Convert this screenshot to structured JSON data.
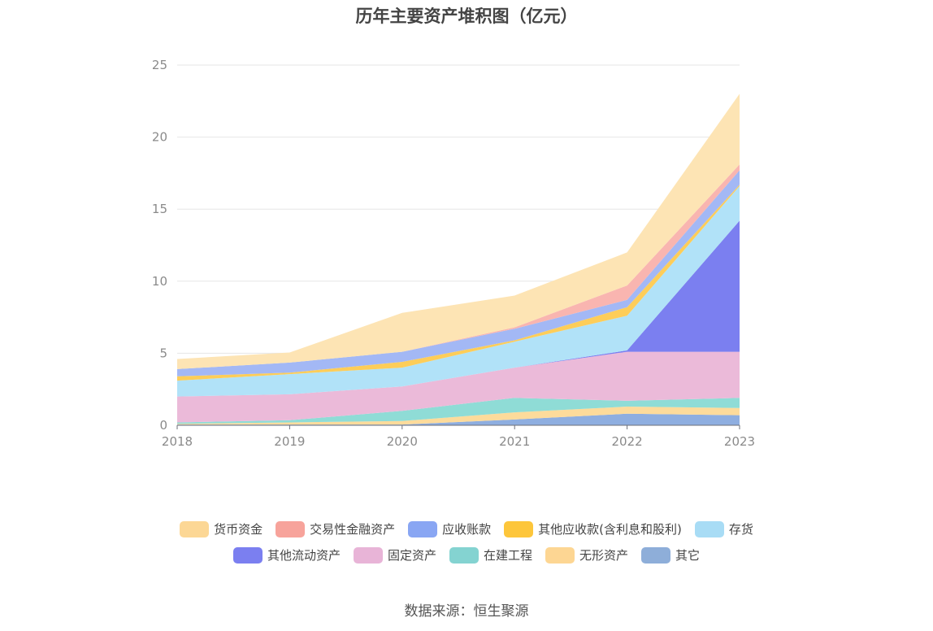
{
  "chart_data": {
    "type": "area",
    "stacked": true,
    "title": "历年主要资产堆积图（亿元）",
    "xlabel": "",
    "ylabel": "",
    "ylim": [
      0,
      25
    ],
    "yticks": [
      0,
      5,
      10,
      15,
      20,
      25
    ],
    "categories": [
      "2018",
      "2019",
      "2020",
      "2021",
      "2022",
      "2023"
    ],
    "grid": true,
    "legend_position": "bottom",
    "series": [
      {
        "name": "其它",
        "color": "#8eaee0",
        "values": [
          0.05,
          0.05,
          0.05,
          0.4,
          0.8,
          0.7
        ]
      },
      {
        "name": "无形资产",
        "color": "#fddb9b",
        "values": [
          0.05,
          0.15,
          0.25,
          0.5,
          0.5,
          0.5
        ]
      },
      {
        "name": "在建工程",
        "color": "#8fdcd6",
        "values": [
          0.1,
          0.15,
          0.7,
          1.0,
          0.4,
          0.7
        ]
      },
      {
        "name": "固定资产",
        "color": "#ebbad9",
        "values": [
          1.8,
          1.8,
          1.7,
          2.1,
          3.4,
          3.2
        ]
      },
      {
        "name": "其他流动资产",
        "color": "#7b7ff0",
        "values": [
          0,
          0,
          0,
          0,
          0.1,
          9.1
        ]
      },
      {
        "name": "存货",
        "color": "#b1e2f8",
        "values": [
          1.1,
          1.4,
          1.3,
          1.8,
          2.4,
          2.4
        ]
      },
      {
        "name": "其他应收款(含利息和股利)",
        "color": "#fdcd59",
        "values": [
          0.3,
          0.1,
          0.4,
          0.1,
          0.6,
          0.1
        ]
      },
      {
        "name": "应收账款",
        "color": "#a3b8f5",
        "values": [
          0.5,
          0.7,
          0.7,
          0.8,
          0.5,
          1.0
        ]
      },
      {
        "name": "交易性金融资产",
        "color": "#f9b5b0",
        "values": [
          0,
          0,
          0,
          0.1,
          1.0,
          0.4
        ]
      },
      {
        "name": "货币资金",
        "color": "#fde4b4",
        "values": [
          0.7,
          0.7,
          2.7,
          2.2,
          2.3,
          4.9
        ]
      }
    ]
  },
  "legend": {
    "row1": [
      {
        "label": "货币资金",
        "color": "#fcd795"
      },
      {
        "label": "交易性金融资产",
        "color": "#f7a39b"
      },
      {
        "label": "应收账款",
        "color": "#89a6f3"
      },
      {
        "label": "其他应收款(含利息和股利)",
        "color": "#fdc63b"
      },
      {
        "label": "存货",
        "color": "#a8dcf5"
      }
    ],
    "row2": [
      {
        "label": "其他流动资产",
        "color": "#7b7ff0"
      },
      {
        "label": "固定资产",
        "color": "#e8b4d7"
      },
      {
        "label": "在建工程",
        "color": "#84d3d1"
      },
      {
        "label": "无形资产",
        "color": "#fdd693"
      },
      {
        "label": "其它",
        "color": "#8eaed9"
      }
    ]
  },
  "source_text": "数据来源：恒生聚源"
}
